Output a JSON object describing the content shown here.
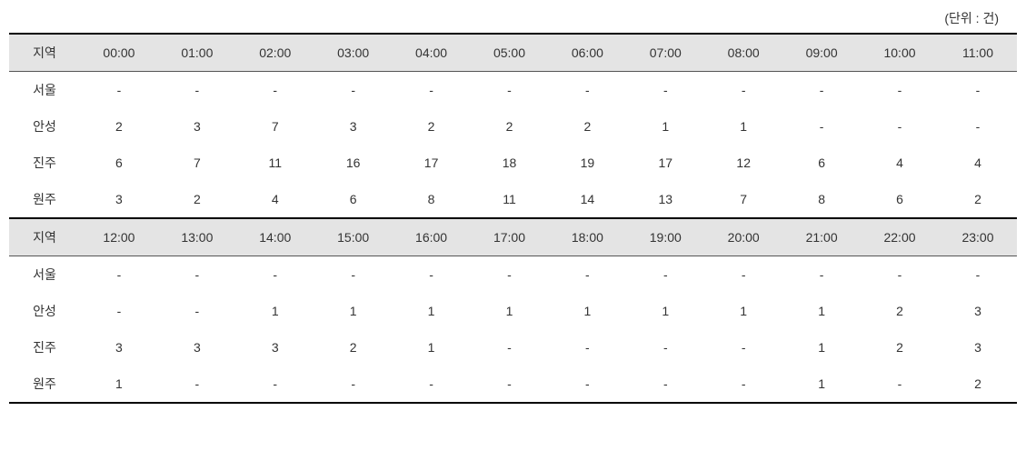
{
  "unit_label": "(단위 : 건)",
  "table": {
    "region_header": "지역",
    "columns_top": [
      "00:00",
      "01:00",
      "02:00",
      "03:00",
      "04:00",
      "05:00",
      "06:00",
      "07:00",
      "08:00",
      "09:00",
      "10:00",
      "11:00"
    ],
    "columns_bottom": [
      "12:00",
      "13:00",
      "14:00",
      "15:00",
      "16:00",
      "17:00",
      "18:00",
      "19:00",
      "20:00",
      "21:00",
      "22:00",
      "23:00"
    ],
    "regions": [
      "서울",
      "안성",
      "진주",
      "원주"
    ],
    "data_top": [
      [
        "-",
        "-",
        "-",
        "-",
        "-",
        "-",
        "-",
        "-",
        "-",
        "-",
        "-",
        "-"
      ],
      [
        "2",
        "3",
        "7",
        "3",
        "2",
        "2",
        "2",
        "1",
        "1",
        "-",
        "-",
        "-"
      ],
      [
        "6",
        "7",
        "11",
        "16",
        "17",
        "18",
        "19",
        "17",
        "12",
        "6",
        "4",
        "4"
      ],
      [
        "3",
        "2",
        "4",
        "6",
        "8",
        "11",
        "14",
        "13",
        "7",
        "8",
        "6",
        "2"
      ]
    ],
    "data_bottom": [
      [
        "-",
        "-",
        "-",
        "-",
        "-",
        "-",
        "-",
        "-",
        "-",
        "-",
        "-",
        "-"
      ],
      [
        "-",
        "-",
        "1",
        "1",
        "1",
        "1",
        "1",
        "1",
        "1",
        "1",
        "2",
        "3"
      ],
      [
        "3",
        "3",
        "3",
        "2",
        "1",
        "-",
        "-",
        "-",
        "-",
        "1",
        "2",
        "3"
      ],
      [
        "1",
        "-",
        "-",
        "-",
        "-",
        "-",
        "-",
        "-",
        "-",
        "1",
        "-",
        "2"
      ]
    ],
    "header_bg": "#e4e4e4",
    "border_color": "#000000",
    "text_color": "#333333",
    "font_size": 14
  }
}
